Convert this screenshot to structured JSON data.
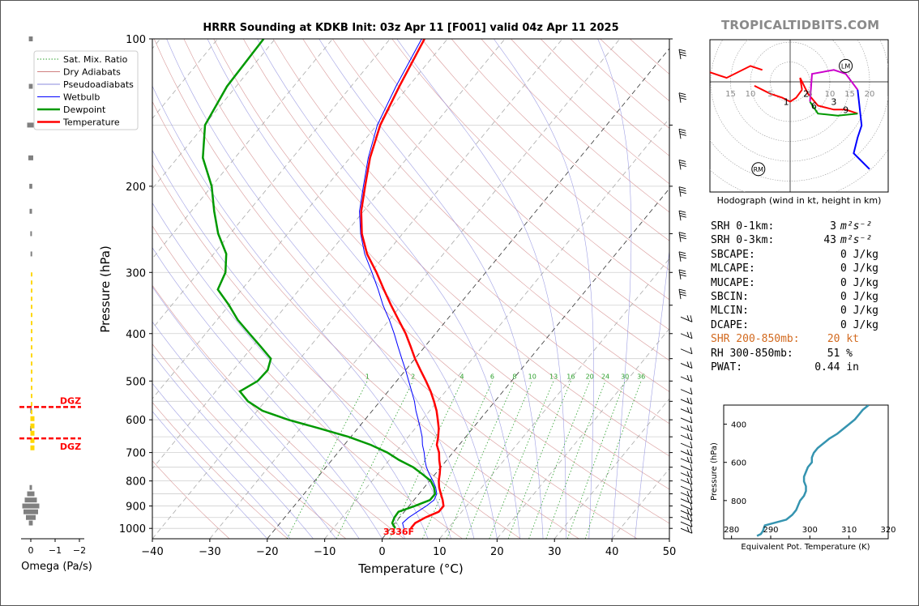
{
  "brand": "TROPICALTIDBITS.COM",
  "title": "HRRR Sounding at KDKB Init: 03z Apr 11 [F001] valid 04z Apr 11 2025",
  "legend": {
    "items": [
      {
        "label": "Sat. Mix. Ratio",
        "color": "#2ca02c",
        "style": "dotted"
      },
      {
        "label": "Dry Adiabats",
        "color": "#d08080",
        "style": "solid"
      },
      {
        "label": "Pseudoadiabats",
        "color": "#8888dd",
        "style": "solid"
      },
      {
        "label": "Wetbulb",
        "color": "#0000ff",
        "style": "solid"
      },
      {
        "label": "Dewpoint",
        "color": "#009900",
        "style": "solid"
      },
      {
        "label": "Temperature",
        "color": "#ff0000",
        "style": "solid"
      }
    ]
  },
  "skewt": {
    "xlabel": "Temperature (°C)",
    "ylabel": "Pressure (hPa)",
    "xlim": [
      -40,
      50
    ],
    "ylim": [
      1050,
      100
    ],
    "xticks": [
      "−40",
      "−30",
      "−20",
      "−10",
      "0",
      "10",
      "20",
      "30",
      "40",
      "50"
    ],
    "yticks": [
      "100",
      "200",
      "300",
      "400",
      "500",
      "600",
      "700",
      "800",
      "900",
      "1000"
    ],
    "surface_label": "3336F",
    "mixing_ratio_labels": [
      "1",
      "2",
      "4",
      "6",
      "8",
      "10",
      "13",
      "16",
      "20",
      "24",
      "30",
      "36"
    ]
  },
  "omega": {
    "xlabel": "Omega (Pa/s)",
    "xticks": [
      "0",
      "−1",
      "−2"
    ],
    "dgz_label": "DGZ"
  },
  "hodograph": {
    "caption": "Hodograph (wind in kt, height in km)",
    "ring_labels_left": [
      "15",
      "10",
      "5"
    ],
    "ring_labels_right": [
      "5",
      "10",
      "15",
      "20"
    ],
    "height_labels": [
      "1",
      "2",
      "6",
      "3",
      "9"
    ],
    "lm_label": "LM",
    "rm_label": "RM"
  },
  "stats": [
    {
      "label": "SRH 0-1km:",
      "value": "3"
    },
    {
      "label": "SRH 0-3km:",
      "value": "43"
    },
    {
      "label": "SBCAPE:",
      "value": "0 J/kg"
    },
    {
      "label": "MLCAPE:",
      "value": "0 J/kg"
    },
    {
      "label": "MUCAPE:",
      "value": "0 J/kg"
    },
    {
      "label": "SBCIN:",
      "value": "0 J/kg"
    },
    {
      "label": "MLCIN:",
      "value": "0 J/kg"
    },
    {
      "label": "DCAPE:",
      "value": "0 J/kg"
    },
    {
      "label": "SHR 200-850mb:",
      "value": "20 kt"
    },
    {
      "label": "RH 300-850mb:",
      "value": "51 %"
    },
    {
      "label": "PWAT:",
      "value": "0.44 in"
    }
  ],
  "srh_unit": "m²s⁻²",
  "theta_e": {
    "xlabel": "Equivalent Pot. Temperature (K)",
    "ylabel": "Pressure (hPa)",
    "xticks": [
      "280",
      "290",
      "300",
      "310",
      "320"
    ],
    "yticks": [
      "400",
      "600",
      "800"
    ]
  },
  "chart_data": [
    {
      "type": "line",
      "title": "HRRR Sounding at KDKB Init: 03z Apr 11 [F001] valid 04z Apr 11 2025",
      "xlabel": "Temperature (°C)",
      "ylabel": "Pressure (hPa)",
      "y_scale": "log",
      "xlim": [
        -40,
        50
      ],
      "ylim": [
        1050,
        100
      ],
      "legend_position": "top-left",
      "series": [
        {
          "name": "Temperature",
          "pressure_hPa": [
            1000,
            975,
            950,
            925,
            900,
            875,
            850,
            825,
            800,
            775,
            750,
            725,
            700,
            675,
            650,
            625,
            600,
            575,
            550,
            525,
            500,
            475,
            450,
            425,
            400,
            375,
            350,
            325,
            300,
            275,
            250,
            225,
            200,
            175,
            150,
            125,
            100
          ],
          "temp_C": [
            3.5,
            3.5,
            4.5,
            6.0,
            6.0,
            5.0,
            3.8,
            2.6,
            1.6,
            0.8,
            -0.1,
            -1.3,
            -2.4,
            -3.9,
            -4.8,
            -5.9,
            -7.3,
            -8.8,
            -10.6,
            -12.6,
            -14.9,
            -17.4,
            -20.0,
            -22.5,
            -25.2,
            -28.4,
            -31.8,
            -35.3,
            -39.0,
            -43.3,
            -47.1,
            -50.4,
            -53.3,
            -56.5,
            -59.4,
            -61.6,
            -64.0
          ]
        },
        {
          "name": "Dewpoint",
          "pressure_hPa": [
            1000,
            975,
            950,
            925,
            900,
            875,
            850,
            825,
            800,
            775,
            750,
            725,
            700,
            675,
            650,
            625,
            600,
            575,
            550,
            525,
            500,
            475,
            450,
            425,
            400,
            375,
            350,
            325,
            300,
            275,
            250,
            225,
            200,
            175,
            150,
            125,
            100
          ],
          "temp_C": [
            0.8,
            -0.5,
            -0.9,
            -1.0,
            1.0,
            2.8,
            2.8,
            1.7,
            0.2,
            -2.2,
            -4.8,
            -8.3,
            -11.4,
            -15.4,
            -20.4,
            -26.6,
            -33.3,
            -39.1,
            -43.0,
            -45.8,
            -44.2,
            -44.0,
            -45.1,
            -48.6,
            -52.4,
            -56.4,
            -60.0,
            -64.2,
            -65.3,
            -67.8,
            -72.1,
            -76.0,
            -80.0,
            -85.6,
            -89.9,
            -91.6,
            -92.0
          ]
        },
        {
          "name": "Wetbulb",
          "pressure_hPa": [
            1000,
            975,
            950,
            925,
            900,
            875,
            850,
            825,
            800,
            775,
            750,
            725,
            700,
            675,
            650,
            625,
            600,
            575,
            550,
            525,
            500,
            475,
            450,
            425,
            400,
            375,
            350,
            325,
            300,
            275,
            250,
            225,
            200,
            175,
            150,
            125,
            100
          ],
          "temp_C": [
            2.3,
            1.3,
            1.6,
            2.3,
            3.0,
            3.5,
            3.1,
            2.0,
            0.6,
            -1.0,
            -2.5,
            -3.8,
            -5.0,
            -6.4,
            -7.6,
            -9.1,
            -10.7,
            -12.4,
            -14.0,
            -15.9,
            -17.9,
            -20.0,
            -22.3,
            -24.7,
            -27.2,
            -30.0,
            -33.2,
            -36.3,
            -39.8,
            -43.7,
            -47.3,
            -50.7,
            -53.6,
            -56.8,
            -59.9,
            -62.2,
            -64.5
          ]
        }
      ]
    },
    {
      "type": "bar",
      "xlabel": "Omega (Pa/s)",
      "x_range": [
        0.2,
        -2.3
      ],
      "pressure_hPa": [
        100,
        125,
        150,
        175,
        200,
        225,
        250,
        275,
        575,
        625,
        825,
        850,
        875,
        900,
        925,
        950,
        975
      ],
      "omega": [
        -0.08,
        -0.08,
        -0.15,
        -0.1,
        -0.06,
        -0.05,
        -0.02,
        -0.01,
        -0.02,
        -0.03,
        -0.05,
        -0.15,
        -0.25,
        -0.35,
        -0.3,
        -0.2,
        -0.08
      ],
      "dgz_hPa": [
        565,
        655
      ]
    },
    {
      "type": "line",
      "title": "Hodograph (wind in kt, height in km)",
      "units": "kt",
      "series": [
        {
          "name": "0-1 km",
          "color": "#ff0000",
          "u": [
            -9,
            -5,
            -2,
            0,
            1.5,
            3
          ],
          "v": [
            -1,
            -3,
            -4,
            -5,
            -4,
            -2
          ]
        },
        {
          "name": "1-3 km",
          "color": "#ff0000",
          "u": [
            3,
            2.5,
            4.5,
            7,
            11,
            14,
            17
          ],
          "v": [
            -2,
            1,
            -3,
            -6,
            -7,
            -7,
            -8
          ]
        },
        {
          "name": "3-6 km",
          "color": "#009900",
          "u": [
            5,
            7,
            12,
            17
          ],
          "v": [
            -5,
            -8,
            -8.5,
            -8
          ]
        },
        {
          "name": "6-9 km",
          "color": "#cc00cc",
          "u": [
            5,
            5.5,
            11,
            14,
            17
          ],
          "v": [
            -5,
            2,
            3,
            2,
            -2
          ]
        },
        {
          "name": "9-12 km",
          "color": "#0000ff",
          "u": [
            17,
            18,
            17,
            16,
            18,
            20
          ],
          "v": [
            -2,
            -11,
            -14,
            -18,
            -20,
            -22
          ]
        },
        {
          "name": "low-level",
          "color": "#ff0000",
          "u": [
            -22,
            -16,
            -10,
            -7
          ],
          "v": [
            3,
            1,
            4,
            3
          ]
        }
      ],
      "height_label_km": [
        1,
        2,
        3,
        6,
        9
      ],
      "left_mover_kt": [
        14,
        4
      ],
      "right_mover_kt": [
        -8,
        -22
      ]
    },
    {
      "type": "line",
      "xlabel": "Equivalent Pot. Temperature (K)",
      "ylabel": "Pressure (hPa)",
      "xlim": [
        278,
        320
      ],
      "ylim": [
        1000,
        300
      ],
      "series": [
        {
          "name": "Theta-e",
          "color": "#3594b0",
          "pressure_hPa": [
            985,
            975,
            960,
            930,
            900,
            875,
            850,
            825,
            800,
            775,
            750,
            725,
            700,
            675,
            650,
            625,
            600,
            575,
            550,
            525,
            500,
            475,
            450,
            425,
            400,
            375,
            350,
            325,
            300
          ],
          "theta_e_K": [
            286.5,
            287.5,
            288.0,
            288.5,
            294.0,
            295.5,
            296.5,
            297.0,
            297.5,
            298.5,
            299.0,
            299.0,
            298.5,
            298.5,
            299.0,
            299.5,
            300.5,
            300.5,
            301.0,
            302.0,
            303.5,
            305.0,
            307.0,
            308.5,
            310.0,
            311.5,
            312.5,
            313.5,
            315.0
          ]
        }
      ]
    }
  ]
}
